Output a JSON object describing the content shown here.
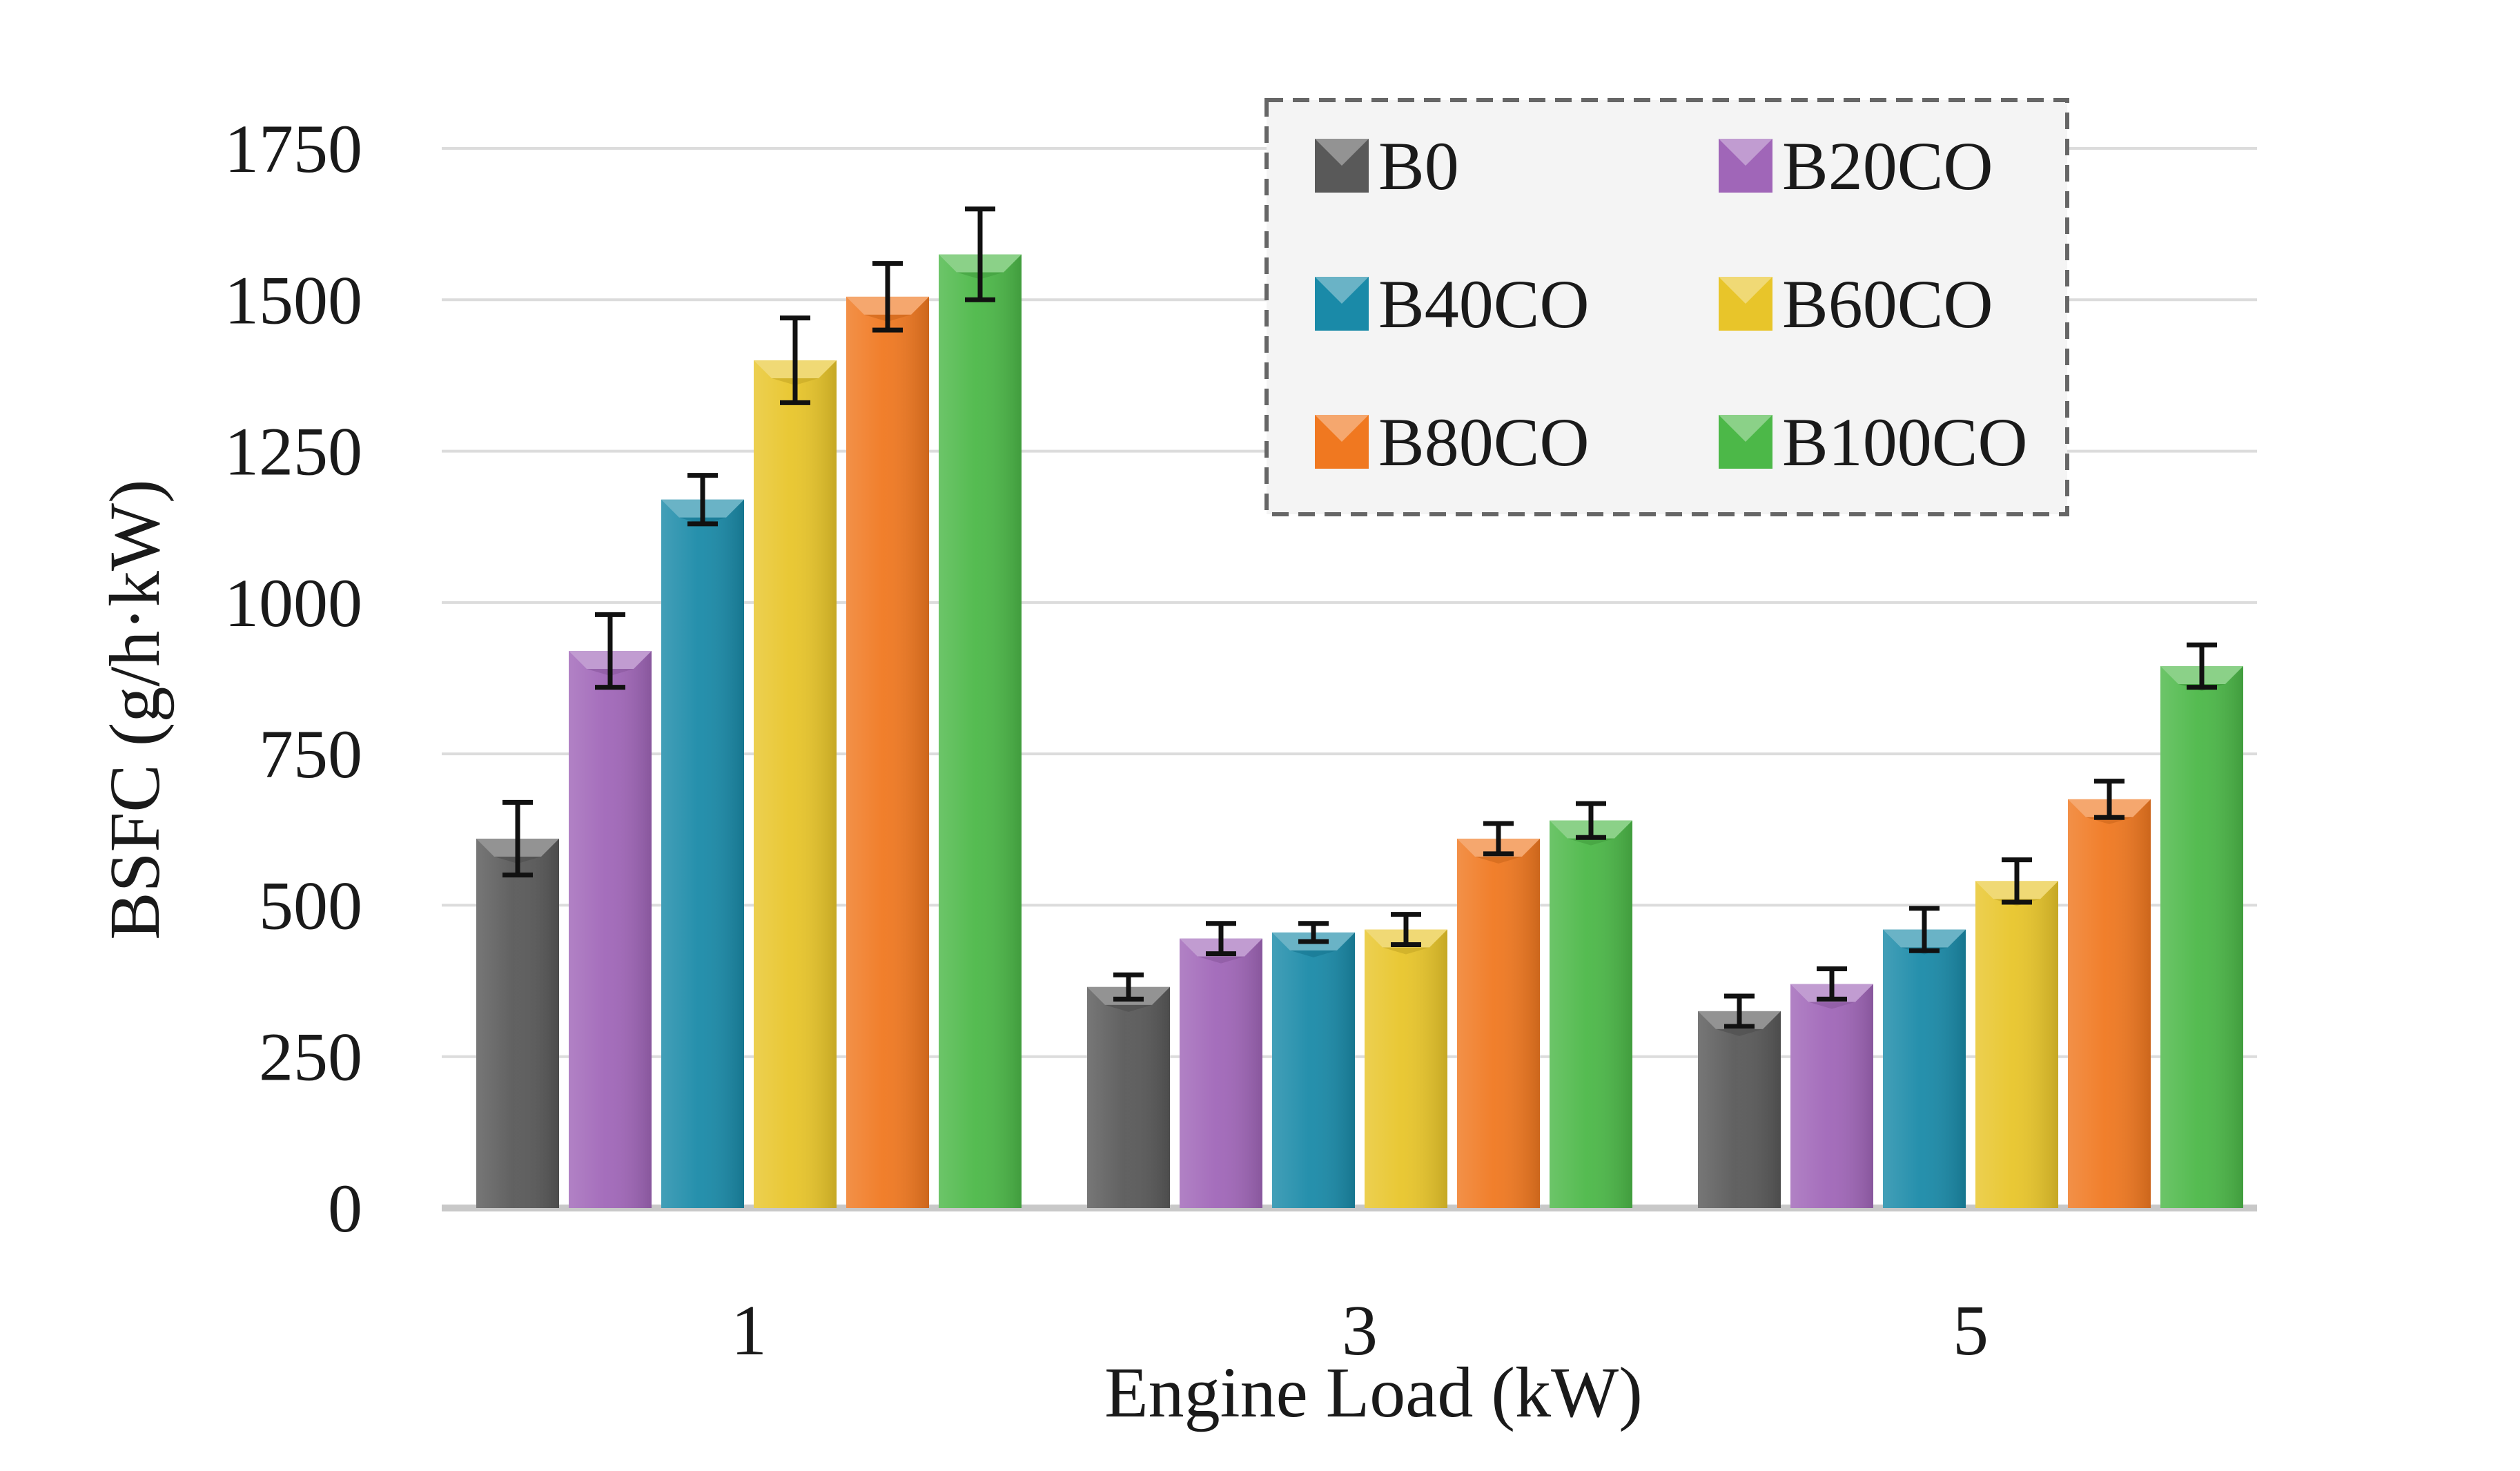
{
  "chart_data": {
    "type": "bar",
    "title": "",
    "xlabel": "Engine Load (kW)",
    "ylabel": "BSFC (g/h·kW)",
    "ylim": [
      0,
      1750
    ],
    "yticks": [
      "0",
      "250",
      "500",
      "750",
      "1000",
      "1250",
      "1500",
      "1750"
    ],
    "grid": true,
    "legend_position": "top-right",
    "categories": [
      "1",
      "3",
      "5"
    ],
    "series": [
      {
        "name": "B0",
        "color": "#595959",
        "values": [
          610,
          365,
          325
        ],
        "errors": [
          60,
          20,
          25
        ]
      },
      {
        "name": "B20CO",
        "color": "#A066B8",
        "values": [
          920,
          445,
          370
        ],
        "errors": [
          60,
          25,
          25
        ]
      },
      {
        "name": "B40CO",
        "color": "#1A8AA8",
        "values": [
          1170,
          455,
          460
        ],
        "errors": [
          40,
          15,
          35
        ]
      },
      {
        "name": "B60CO",
        "color": "#E8C52A",
        "values": [
          1400,
          460,
          540
        ],
        "errors": [
          70,
          25,
          35
        ]
      },
      {
        "name": "B80CO",
        "color": "#F07820",
        "values": [
          1505,
          610,
          675
        ],
        "errors": [
          55,
          25,
          30
        ]
      },
      {
        "name": "B100CO",
        "color": "#4CB848",
        "values": [
          1575,
          640,
          895
        ],
        "errors": [
          75,
          28,
          35
        ]
      }
    ]
  }
}
